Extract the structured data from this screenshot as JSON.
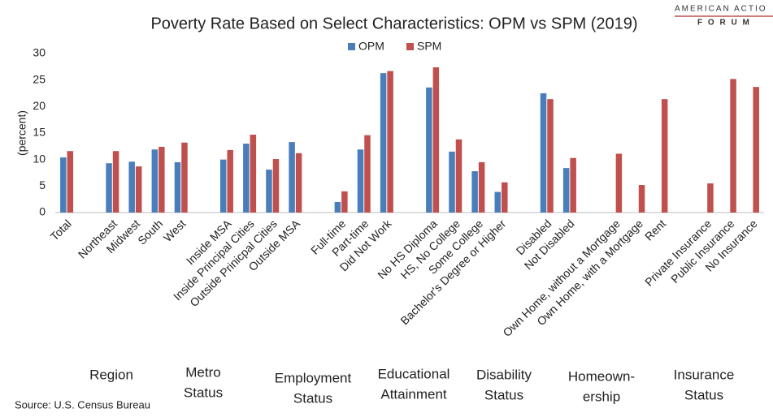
{
  "chart_data": {
    "type": "bar",
    "title": "Poverty Rate Based on Select Characteristics: OPM vs SPM (2019)",
    "y_label": "(percent)",
    "source": "Source: U.S. Census Bureau",
    "logo": {
      "line1": "AMERICAN ACTIO",
      "line2": "F O R U M"
    },
    "categories": [
      "Total",
      null,
      "Northeast",
      "Midwest",
      "South",
      "West",
      null,
      "Inside MSA",
      "Inside Principal Cities",
      "Outside Prinicpal Cities",
      "Outside MSA",
      null,
      "Full-time",
      "Part-time",
      "Did Not Work",
      null,
      "No HS Diploma",
      "HS, No College",
      "Some College",
      "Bachelor's Degree or Higher",
      null,
      "Disabled",
      "Not Disabled",
      null,
      "Own Home, without a Mortgage",
      "Own Home, with a Mortgage",
      "Rent",
      null,
      "Private Insurance",
      "Public Insurance",
      "No Insurance"
    ],
    "series": [
      {
        "name": "OPM",
        "color": "#4a7ebb",
        "values": [
          10.4,
          null,
          9.3,
          9.6,
          11.9,
          9.5,
          null,
          10.0,
          13.0,
          8.1,
          13.3,
          null,
          2.0,
          11.9,
          26.3,
          null,
          23.6,
          11.5,
          7.8,
          3.9,
          null,
          22.5,
          8.4,
          null,
          null,
          null,
          null,
          null,
          null,
          null,
          null
        ]
      },
      {
        "name": "SPM",
        "color": "#c0504d",
        "values": [
          11.6,
          null,
          11.6,
          8.7,
          12.4,
          13.2,
          null,
          11.8,
          14.7,
          10.1,
          11.2,
          null,
          4.0,
          14.6,
          26.7,
          null,
          27.4,
          13.8,
          9.5,
          5.7,
          null,
          21.4,
          10.3,
          null,
          11.1,
          5.2,
          21.4,
          null,
          5.5,
          25.2,
          23.7
        ]
      }
    ],
    "group_labels": [
      [
        "Region"
      ],
      [
        "Metro",
        "Status"
      ],
      [
        "Employment",
        "Status"
      ],
      [
        "Educational",
        "Attainment"
      ],
      [
        "Disability",
        "Status"
      ],
      [
        "Homeown-",
        "ership"
      ],
      [
        "Insurance",
        "Status"
      ]
    ],
    "ylim": [
      0,
      30
    ],
    "yticks": [
      0,
      5,
      10,
      15,
      20,
      25,
      30
    ],
    "grid": false,
    "legend": "top"
  }
}
